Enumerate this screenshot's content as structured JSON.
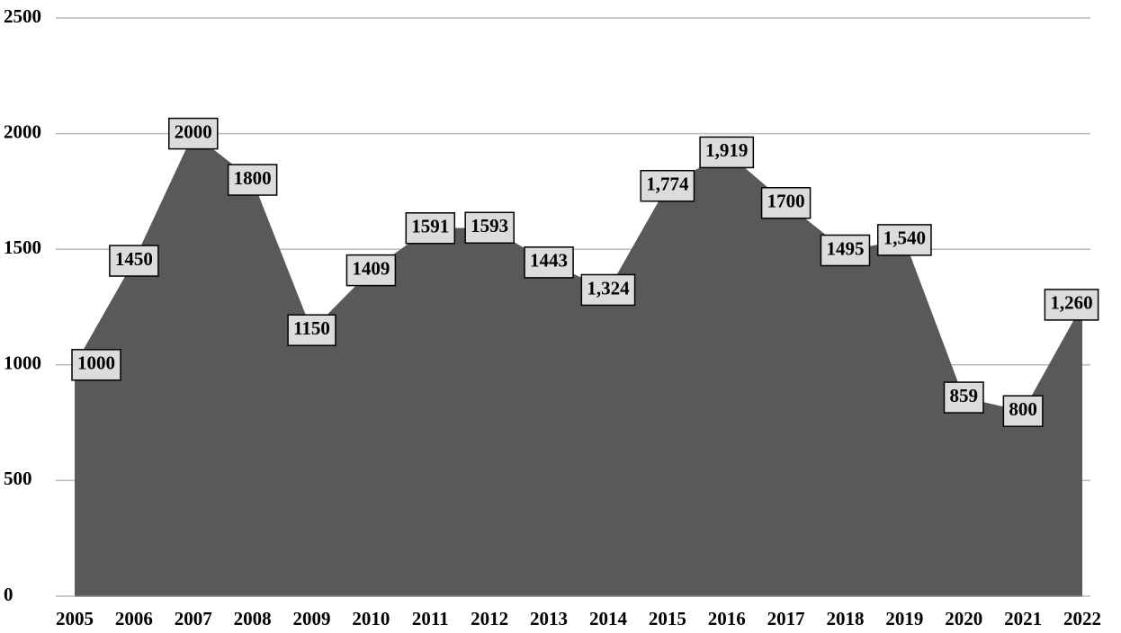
{
  "chart_data": {
    "type": "area",
    "categories": [
      "2005",
      "2006",
      "2007",
      "2008",
      "2009",
      "2010",
      "2011",
      "2012",
      "2013",
      "2014",
      "2015",
      "2016",
      "2017",
      "2018",
      "2019",
      "2020",
      "2021",
      "2022"
    ],
    "values": [
      1000,
      1450,
      2000,
      1800,
      1150,
      1409,
      1591,
      1593,
      1443,
      1324,
      1774,
      1919,
      1700,
      1495,
      1540,
      859,
      800,
      1260
    ],
    "value_labels": [
      "1000",
      "1450",
      "2000",
      "1800",
      "1150",
      "1409",
      "1591",
      "1593",
      "1443",
      "1,324",
      "1,774",
      "1,919",
      "1700",
      "1495",
      "1,540",
      "859",
      "800",
      "1,260"
    ],
    "color": "#595959",
    "ylim": [
      0,
      2500
    ],
    "yticks": [
      0,
      500,
      1000,
      1500,
      2000,
      2500
    ],
    "grid": true
  }
}
